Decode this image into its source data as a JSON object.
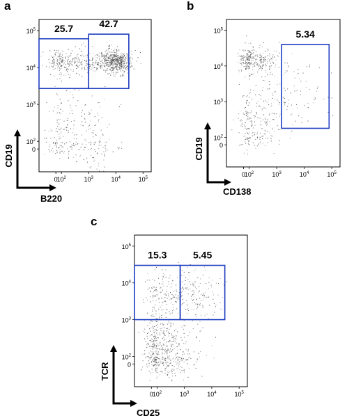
{
  "chart_data": [
    {
      "type": "scatter",
      "panel_label": "a",
      "xlabel": "B220",
      "ylabel": "CD19",
      "x_scale": "biexponential",
      "y_scale": "biexponential",
      "xlim": [
        -300,
        200000
      ],
      "ylim": [
        -300,
        200000
      ],
      "x_ticks": [
        {
          "value": 0,
          "base": "0",
          "exp": ""
        },
        {
          "value": 100,
          "base": "10",
          "exp": "2"
        },
        {
          "value": 1000,
          "base": "10",
          "exp": "3"
        },
        {
          "value": 10000,
          "base": "10",
          "exp": "4"
        },
        {
          "value": 100000,
          "base": "10",
          "exp": "5"
        }
      ],
      "y_ticks": [
        {
          "value": 0,
          "base": "0",
          "exp": ""
        },
        {
          "value": 100,
          "base": "10",
          "exp": "2"
        },
        {
          "value": 1000,
          "base": "10",
          "exp": "3"
        },
        {
          "value": 10000,
          "base": "10",
          "exp": "4"
        },
        {
          "value": 100000,
          "base": "10",
          "exp": "5"
        }
      ],
      "gates": [
        {
          "label": "25.7",
          "x_range": [
            -300,
            1000
          ],
          "y_range": [
            2700,
            60000
          ]
        },
        {
          "label": "42.7",
          "x_range": [
            1000,
            30000
          ],
          "y_range": [
            2700,
            80000
          ]
        }
      ],
      "populations": [
        {
          "x_center": 300,
          "x_spread": 0.75,
          "y_center": 15000,
          "y_spread": 0.17,
          "count": 320
        },
        {
          "x_center": 9000,
          "x_spread": 0.3,
          "y_center": 15000,
          "y_spread": 0.15,
          "count": 520
        },
        {
          "x_center": 200,
          "x_spread": 0.8,
          "y_center": 200,
          "y_spread": 0.65,
          "count": 230
        },
        {
          "x_center": 1500,
          "x_spread": 0.6,
          "y_center": 40,
          "y_spread": 1.0,
          "count": 70
        }
      ]
    },
    {
      "type": "scatter",
      "panel_label": "b",
      "xlabel": "CD138",
      "ylabel": "CD19",
      "x_scale": "biexponential",
      "y_scale": "biexponential",
      "xlim": [
        -300,
        200000
      ],
      "ylim": [
        -300,
        200000
      ],
      "x_ticks": [
        {
          "value": 0,
          "base": "0",
          "exp": ""
        },
        {
          "value": 100,
          "base": "10",
          "exp": "2"
        },
        {
          "value": 1000,
          "base": "10",
          "exp": "3"
        },
        {
          "value": 10000,
          "base": "10",
          "exp": "4"
        },
        {
          "value": 100000,
          "base": "10",
          "exp": "5"
        }
      ],
      "y_ticks": [
        {
          "value": 0,
          "base": "0",
          "exp": ""
        },
        {
          "value": 100,
          "base": "10",
          "exp": "2"
        },
        {
          "value": 1000,
          "base": "10",
          "exp": "3"
        },
        {
          "value": 10000,
          "base": "10",
          "exp": "4"
        },
        {
          "value": 100000,
          "base": "10",
          "exp": "5"
        }
      ],
      "gates": [
        {
          "label": "5.34",
          "x_range": [
            1500,
            80000
          ],
          "y_range": [
            180,
            40000
          ]
        }
      ],
      "populations": [
        {
          "x_center": 150,
          "x_spread": 0.5,
          "y_center": 15000,
          "y_spread": 0.18,
          "count": 300
        },
        {
          "x_center": 150,
          "x_spread": 0.55,
          "y_center": 250,
          "y_spread": 0.55,
          "count": 230
        },
        {
          "x_center": 5000,
          "x_spread": 0.7,
          "y_center": 2000,
          "y_spread": 0.6,
          "count": 90
        }
      ]
    },
    {
      "type": "scatter",
      "panel_label": "c",
      "xlabel": "CD25",
      "ylabel": "TCR",
      "x_scale": "biexponential",
      "y_scale": "biexponential",
      "xlim": [
        -300,
        200000
      ],
      "ylim": [
        -300,
        200000
      ],
      "x_ticks": [
        {
          "value": 0,
          "base": "0",
          "exp": ""
        },
        {
          "value": 100,
          "base": "10",
          "exp": "2"
        },
        {
          "value": 1000,
          "base": "10",
          "exp": "3"
        },
        {
          "value": 10000,
          "base": "10",
          "exp": "4"
        },
        {
          "value": 100000,
          "base": "10",
          "exp": "5"
        }
      ],
      "y_ticks": [
        {
          "value": 0,
          "base": "0",
          "exp": ""
        },
        {
          "value": 100,
          "base": "10",
          "exp": "2"
        },
        {
          "value": 1000,
          "base": "10",
          "exp": "3"
        },
        {
          "value": 10000,
          "base": "10",
          "exp": "4"
        },
        {
          "value": 100000,
          "base": "10",
          "exp": "5"
        }
      ],
      "gates": [
        {
          "label": "15.3",
          "x_range": [
            -300,
            700
          ],
          "y_range": [
            1000,
            30000
          ]
        },
        {
          "label": "5.45",
          "x_range": [
            700,
            30000
          ],
          "y_range": [
            1000,
            30000
          ]
        }
      ],
      "populations": [
        {
          "x_center": 150,
          "x_spread": 0.6,
          "y_center": 150,
          "y_spread": 0.7,
          "count": 560
        },
        {
          "x_center": 200,
          "x_spread": 0.65,
          "y_center": 5000,
          "y_spread": 0.35,
          "count": 170
        },
        {
          "x_center": 3000,
          "x_spread": 0.45,
          "y_center": 5000,
          "y_spread": 0.35,
          "count": 110
        }
      ]
    }
  ],
  "colors": {
    "gate": "#1f3fbf",
    "event": "#3a3a3a",
    "axis": "#000000"
  }
}
